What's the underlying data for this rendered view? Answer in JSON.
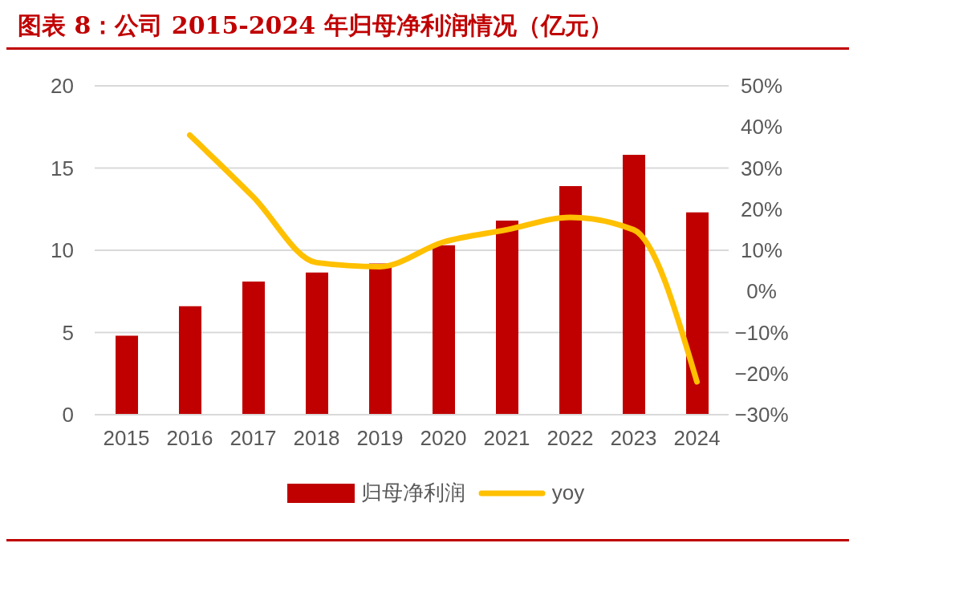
{
  "chart_data": {
    "type": "bar",
    "title": "图表 8：公司 2015-2024 年归母净利润情况（亿元）",
    "categories": [
      "2015",
      "2016",
      "2017",
      "2018",
      "2019",
      "2020",
      "2021",
      "2022",
      "2023",
      "2024"
    ],
    "series": [
      {
        "name": "归母净利润",
        "color": "#c00000",
        "values": [
          4.8,
          6.6,
          8.1,
          8.65,
          9.2,
          10.3,
          11.8,
          13.9,
          15.8,
          12.3
        ]
      },
      {
        "name": "yoy",
        "type": "line",
        "axis": "y2",
        "color": "#ffc000",
        "marker": "none",
        "line_style": "solid",
        "values": [
          null,
          38,
          23,
          7,
          6,
          12,
          15,
          18,
          15,
          -22
        ]
      }
    ],
    "ylim": [
      0,
      20
    ],
    "yticks": [
      0,
      5,
      10,
      15,
      20
    ],
    "y2lim": [
      -30,
      50
    ],
    "y2ticks": [
      {
        "value": -30,
        "label": "−30%"
      },
      {
        "value": -20,
        "label": "−20%"
      },
      {
        "value": -10,
        "label": "−10%"
      },
      {
        "value": 0,
        "label": "0%"
      },
      {
        "value": 10,
        "label": "10%"
      },
      {
        "value": 20,
        "label": "20%"
      },
      {
        "value": 30,
        "label": "30%"
      },
      {
        "value": 40,
        "label": "40%"
      },
      {
        "value": 50,
        "label": "50%"
      }
    ],
    "grid": "y",
    "legend": "bottom"
  }
}
